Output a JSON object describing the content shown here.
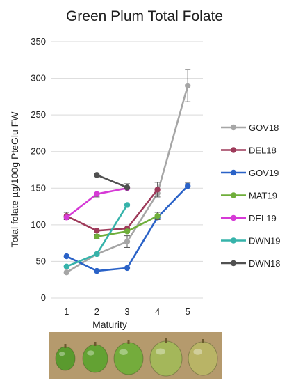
{
  "chart_data": {
    "type": "line",
    "title": "Green Plum Total Folate",
    "xlabel": "Maturity",
    "ylabel": "Total folate µg/100g PteGlu FW",
    "x": [
      1,
      2,
      3,
      4,
      5
    ],
    "x_tick_labels": [
      "1",
      "2",
      "3",
      "4",
      "5"
    ],
    "ylim": [
      0,
      350
    ],
    "y_ticks": [
      0,
      50,
      100,
      150,
      200,
      250,
      300,
      350
    ],
    "y_tick_labels": [
      "0",
      "50",
      "100",
      "150",
      "200",
      "250",
      "300",
      "350"
    ],
    "grid": true,
    "legend_position": "right",
    "series": [
      {
        "name": "GOV18",
        "color": "#a6a6a6",
        "values": [
          35,
          60,
          77,
          143,
          290
        ],
        "errors": [
          0,
          0,
          8,
          0,
          22
        ]
      },
      {
        "name": "DEL18",
        "color": "#9e3a5a",
        "values": [
          112,
          92,
          95,
          148,
          null
        ],
        "errors": [
          5,
          0,
          0,
          10,
          0
        ]
      },
      {
        "name": "GOV19",
        "color": "#2a62c7",
        "values": [
          57,
          37,
          41,
          110,
          153
        ],
        "errors": [
          0,
          0,
          0,
          0,
          4
        ]
      },
      {
        "name": "MAT19",
        "color": "#6fae3a",
        "values": [
          null,
          84,
          91,
          112,
          null
        ],
        "errors": [
          0,
          3,
          0,
          5,
          0
        ]
      },
      {
        "name": "DEL19",
        "color": "#d63ad6",
        "values": [
          110,
          142,
          150,
          null,
          null
        ],
        "errors": [
          0,
          4,
          0,
          0,
          0
        ]
      },
      {
        "name": "DWN19",
        "color": "#36b3aa",
        "values": [
          43,
          60,
          127,
          null,
          null
        ],
        "errors": [
          0,
          0,
          0,
          0,
          0
        ]
      },
      {
        "name": "DWN18",
        "color": "#505050",
        "values": [
          null,
          168,
          151,
          null,
          null
        ],
        "errors": [
          0,
          0,
          5,
          0,
          0
        ]
      }
    ]
  },
  "photo": {
    "background": "#b59a6d",
    "fruits": [
      {
        "color": "#5a9a2e",
        "label": "1"
      },
      {
        "color": "#63a233",
        "label": "2"
      },
      {
        "color": "#74ac3c",
        "label": "3"
      },
      {
        "color": "#a4b75a",
        "label": "4"
      },
      {
        "color": "#b9b466",
        "label": "5"
      }
    ]
  }
}
